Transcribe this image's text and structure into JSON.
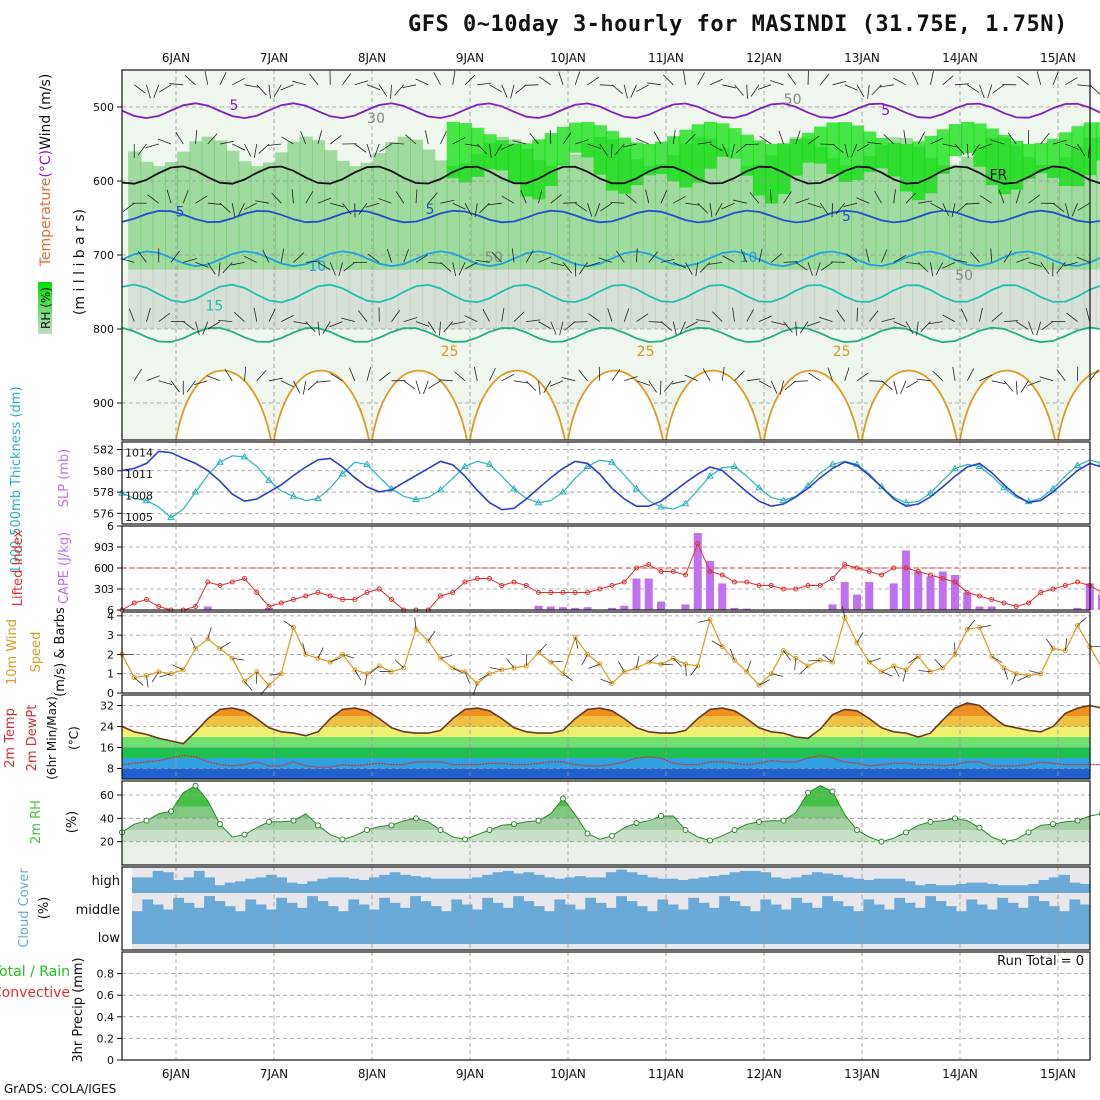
{
  "title": "GFS 0~10day 3-hourly for MASINDI (31.75E, 1.75N)",
  "footer": "GrADS: COLA/IGES",
  "colors": {
    "rh_green": "#00e000",
    "rh_mid": "#5fc45f",
    "rh_light": "#e8f4e8",
    "rh_grey": "#a8b8a8",
    "slp": "#2a3fd0",
    "thickness": "#28b4c0",
    "cape": "#c070f0",
    "lifted": "#e03030",
    "wind": "#e09a20",
    "temp_fill": "#e07018",
    "dewpt": "#d03030",
    "rh2m": "#48c048",
    "cloud": "#6aaad8",
    "cloud_gap": "#e8e8ec"
  },
  "chart_data": [
    {
      "type": "contour",
      "panel": "upper_air",
      "ylabel_parts": [
        "Temperature",
        "(°C)",
        "Wind",
        "(m/s)"
      ],
      "ylabel2": "(m i l l i b a r s)",
      "rh_label": "RH (%)",
      "x_dates": [
        "6JAN",
        "7JAN",
        "8JAN",
        "9JAN",
        "10JAN",
        "11JAN",
        "12JAN",
        "13JAN",
        "14JAN",
        "15JAN"
      ],
      "ylim": [
        450,
        950
      ],
      "y_ticks": [
        500,
        600,
        700,
        800,
        900
      ],
      "contour_labels": [
        {
          "text": "5",
          "x": 1.0,
          "y": 497,
          "color": "#8020c0"
        },
        {
          "text": "5",
          "x": 7.65,
          "y": 504,
          "color": "#8020c0"
        },
        {
          "text": "50",
          "x": 6.7,
          "y": 489,
          "color": "#888888"
        },
        {
          "text": "30",
          "x": 2.45,
          "y": 515,
          "color": "#888888"
        },
        {
          "text": "FR",
          "x": 8.8,
          "y": 591,
          "color": "#111111"
        },
        {
          "text": "5",
          "x": 0.45,
          "y": 641,
          "color": "#2050d0"
        },
        {
          "text": "5",
          "x": 3.0,
          "y": 638,
          "color": "#2050d0"
        },
        {
          "text": "5",
          "x": 7.25,
          "y": 647,
          "color": "#2050d0"
        },
        {
          "text": "10",
          "x": 1.85,
          "y": 715,
          "color": "#20a0e0"
        },
        {
          "text": "10",
          "x": 6.25,
          "y": 703,
          "color": "#20a0e0"
        },
        {
          "text": "50",
          "x": 3.65,
          "y": 703,
          "color": "#888888"
        },
        {
          "text": "50",
          "x": 8.45,
          "y": 727,
          "color": "#888888"
        },
        {
          "text": "15",
          "x": 0.8,
          "y": 768,
          "color": "#20c0b0"
        },
        {
          "text": "25",
          "x": 3.2,
          "y": 830,
          "color": "#e09a20"
        },
        {
          "text": "25",
          "x": 5.2,
          "y": 830,
          "color": "#e09a20"
        },
        {
          "text": "25",
          "x": 7.2,
          "y": 830,
          "color": "#e09a20"
        }
      ]
    },
    {
      "type": "line",
      "panel": "slp_thickness",
      "ylabel_thickness": "1000-500mb Thickness (dm)",
      "ylabel_slp": "SLP (mb)",
      "left_ticks": [
        576,
        578,
        580,
        582
      ],
      "right_ticks": [
        1005,
        1008,
        1011,
        1014
      ],
      "slp": [
        1011.5,
        1011.8,
        1012.5,
        1014.2,
        1014.0,
        1013.2,
        1012.5,
        1011.5,
        1010.0,
        1008.2,
        1007.2,
        1007.5,
        1008.5,
        1009.5,
        1010.8,
        1012.0,
        1013.0,
        1013.2,
        1012.0,
        1010.5,
        1009.2,
        1008.5,
        1008.8,
        1009.8,
        1010.8,
        1011.8,
        1012.8,
        1012.3,
        1010.7,
        1008.7,
        1007.0,
        1006.0,
        1006.2,
        1007.5,
        1009.0,
        1010.5,
        1011.8,
        1012.8,
        1012.5,
        1011.0,
        1009.0,
        1007.5,
        1006.5,
        1006.5,
        1007.2,
        1008.5,
        1009.8,
        1011.0,
        1012.0,
        1011.5,
        1010.0,
        1008.5,
        1007.2,
        1006.5,
        1006.8,
        1007.8,
        1009.0,
        1010.5,
        1011.8,
        1012.7,
        1012.2,
        1010.8,
        1009.2,
        1007.5,
        1006.5,
        1006.8,
        1007.8,
        1009.2,
        1010.7,
        1012.0,
        1012.5,
        1011.2,
        1009.5,
        1008.0,
        1007.0,
        1007.3,
        1008.5,
        1010.0,
        1011.5,
        1012.5,
        1012.0,
        1010.5,
        1009.0,
        1007.8,
        1007.5,
        1008.2,
        1009.5,
        1010.8,
        1012.0,
        1012.7
      ],
      "thickness": [
        577.9,
        577.4,
        577.2,
        576.6,
        575.6,
        576.4,
        578.0,
        579.6,
        580.8,
        581.4,
        581.3,
        580.4,
        579.1,
        578.1,
        577.6,
        577.2,
        577.4,
        578.4,
        579.7,
        580.8,
        580.6,
        579.4,
        578.3,
        577.6,
        577.3,
        577.5,
        578.2,
        579.3,
        580.4,
        580.9,
        580.6,
        579.5,
        578.3,
        577.4,
        577.0,
        577.2,
        578.0,
        579.3,
        580.4,
        581.0,
        580.8,
        579.6,
        578.3,
        577.2,
        576.6,
        576.4,
        576.9,
        578.2,
        579.5,
        580.3,
        580.4,
        579.5,
        578.4,
        577.5,
        577.2,
        577.6,
        578.6,
        579.8,
        580.6,
        580.9,
        580.6,
        579.7,
        578.5,
        577.5,
        577.0,
        577.1,
        577.9,
        579.1,
        580.2,
        580.6,
        580.4,
        579.5,
        578.4,
        577.5,
        577.1,
        577.4,
        578.3,
        579.5,
        580.5,
        581.0,
        580.7,
        579.7,
        578.6,
        577.7,
        577.2,
        577.3,
        578.0,
        579.1,
        580.1,
        580.6
      ]
    },
    {
      "type": "bar",
      "panel": "cape_li",
      "ylabel_li": "Lifted Index",
      "ylabel_cape": "CAPE (J/kg)",
      "left_ticks": [
        6,
        3,
        0,
        -3,
        -6
      ],
      "right_ticks": [
        30,
        60,
        90
      ],
      "ylim_cape": [
        0,
        120
      ],
      "cape": [
        0,
        0,
        0,
        0,
        0,
        0,
        0,
        5,
        0,
        0,
        0,
        0,
        3,
        0,
        0,
        0,
        0,
        0,
        0,
        0,
        0,
        0,
        0,
        0,
        0,
        0,
        0,
        0,
        0,
        0,
        0,
        0,
        0,
        0,
        6,
        5,
        4,
        3,
        4,
        0,
        3,
        6,
        45,
        45,
        12,
        0,
        8,
        110,
        70,
        38,
        3,
        2,
        0,
        0,
        0,
        0,
        0,
        0,
        8,
        40,
        22,
        40,
        0,
        38,
        85,
        55,
        48,
        55,
        50,
        25,
        5,
        5,
        0,
        0,
        0,
        0,
        0,
        0,
        3,
        38,
        22,
        10,
        0,
        0,
        0,
        0,
        0,
        0,
        30,
        3
      ],
      "lifted_index": [
        6,
        5,
        4.5,
        5.5,
        6,
        6,
        5.5,
        2,
        2.5,
        2,
        1.5,
        3.5,
        5.5,
        5,
        4.5,
        4,
        3.5,
        4,
        4.5,
        4.5,
        3.5,
        3,
        4.5,
        6,
        6,
        6,
        4,
        3.5,
        2,
        1.5,
        1.5,
        2.5,
        2,
        2.5,
        3.5,
        3.5,
        3.5,
        3.5,
        3.5,
        3,
        2.5,
        2,
        0,
        -0.5,
        0.5,
        0.5,
        1,
        -3.5,
        0.5,
        1,
        2,
        2,
        2.5,
        2.5,
        3,
        3,
        2.5,
        2.5,
        1.5,
        -0.5,
        0,
        0.5,
        1,
        0,
        0,
        0.5,
        1,
        1.5,
        2,
        3.5,
        4,
        4.5,
        5,
        5.5,
        5,
        3.5,
        3,
        2.5,
        2,
        2.5,
        3.5,
        3.5,
        3.5,
        3,
        2.5,
        2.5,
        2.5,
        2.5,
        2.5,
        1.5
      ]
    },
    {
      "type": "line",
      "panel": "wind10m",
      "ylabel_parts": [
        "10m Wind",
        "Speed",
        "(m/s) & Barbs"
      ],
      "ylim": [
        0,
        4
      ],
      "y_ticks": [
        0,
        1,
        2,
        3,
        4
      ],
      "speed": [
        2.0,
        0.8,
        0.9,
        1.1,
        1.0,
        1.2,
        2.3,
        2.8,
        2.3,
        1.8,
        0.6,
        1.1,
        0.4,
        1.0,
        3.4,
        2.0,
        1.8,
        1.6,
        2.0,
        1.2,
        1.0,
        1.4,
        1.1,
        1.3,
        3.3,
        2.7,
        1.8,
        1.3,
        1.1,
        0.5,
        1.0,
        1.2,
        1.3,
        1.4,
        2.1,
        1.6,
        1.0,
        2.9,
        2.0,
        1.5,
        0.5,
        1.1,
        1.3,
        1.6,
        1.5,
        1.8,
        1.5,
        1.4,
        3.8,
        2.4,
        1.7,
        1.1,
        0.4,
        1.0,
        2.2,
        1.8,
        1.4,
        1.7,
        1.6,
        3.9,
        2.6,
        1.6,
        1.1,
        1.4,
        1.2,
        1.9,
        1.1,
        1.3,
        2.0,
        3.3,
        3.4,
        1.9,
        1.3,
        1.0,
        0.9,
        1.0,
        2.3,
        2.2,
        3.5,
        2.4,
        1.3,
        1.2,
        0.8,
        2.0,
        1.1,
        0.5,
        1.0,
        3.6,
        3.7,
        1.5,
        1.0,
        0.9,
        1.4,
        1.0,
        2.0
      ]
    },
    {
      "type": "area",
      "panel": "temp2m",
      "ylabel_parts": [
        "2m Temp",
        "2m DewPt",
        "(6hr Min/Max)",
        "(°C)"
      ],
      "ylim": [
        4,
        36
      ],
      "y_ticks": [
        8,
        16,
        24,
        32
      ],
      "temp": [
        24,
        22,
        21,
        19.5,
        18.5,
        17.5,
        22,
        27,
        30.5,
        31,
        30,
        27,
        23.5,
        22,
        21.5,
        20.5,
        22,
        27,
        30.5,
        31,
        30,
        27,
        23.5,
        22,
        21.5,
        21.5,
        22.5,
        27,
        30.5,
        31,
        30,
        27,
        23.5,
        22,
        21.5,
        21.5,
        22.5,
        27,
        30.5,
        31,
        30,
        27,
        23.5,
        22,
        21.5,
        21.5,
        22.5,
        27,
        30.5,
        31,
        30,
        27,
        23.5,
        22,
        21.5,
        20,
        19.5,
        23,
        28.5,
        30.5,
        30,
        27,
        23.5,
        22,
        21.5,
        20,
        21.5,
        26.5,
        31,
        33,
        32,
        28,
        24.5,
        23.5,
        22.5,
        22,
        24,
        29,
        31,
        32,
        31,
        28,
        25,
        24,
        23.5,
        23
      ],
      "dewpt": [
        9.5,
        10,
        10.5,
        11,
        12,
        13,
        12.5,
        10.5,
        9.5,
        9,
        9.5,
        10.5,
        9,
        9,
        10.5,
        9,
        8.5,
        8.5,
        9.5,
        9,
        9.5,
        10,
        9.5,
        9.5,
        10.5,
        10.5,
        10.5,
        9.5,
        9.5,
        9.5,
        10,
        10,
        9.5,
        9.5,
        10,
        10.5,
        10.5,
        9.5,
        9,
        9,
        9.5,
        10.5,
        12,
        12.5,
        12,
        10,
        9.5,
        9.5,
        10.5,
        10.5,
        10,
        9.5,
        10,
        11,
        10.5,
        10.5,
        12,
        13,
        12,
        10.5,
        10,
        9,
        9.5,
        10,
        10,
        9.5,
        9.5,
        9,
        9.5,
        10.5,
        10.5,
        9,
        9,
        9,
        9.5,
        10.5,
        10,
        9.5,
        9.5,
        9.5,
        9.5,
        9.5,
        9.5,
        10.5
      ]
    },
    {
      "type": "area",
      "panel": "rh2m",
      "ylabel": "2m RH",
      "yunit": "(%)",
      "ylim": [
        0,
        72
      ],
      "y_ticks": [
        20,
        40,
        60
      ],
      "rh": [
        28,
        35,
        38,
        44,
        46,
        62,
        68,
        55,
        35,
        24,
        26,
        32,
        37,
        37,
        38,
        44,
        34,
        26,
        22,
        25,
        30,
        33,
        34,
        38,
        40,
        37,
        30,
        24,
        22,
        26,
        30,
        34,
        35,
        37,
        38,
        44,
        57,
        43,
        27,
        22,
        25,
        32,
        36,
        38,
        42,
        42,
        30,
        24,
        21,
        25,
        30,
        35,
        37,
        38,
        38,
        45,
        62,
        68,
        63,
        43,
        30,
        24,
        20,
        23,
        28,
        34,
        37,
        38,
        40,
        38,
        32,
        24,
        20,
        22,
        28,
        34,
        35,
        37,
        38,
        42,
        44,
        38,
        28,
        22,
        24,
        28,
        30,
        32,
        36,
        42
      ]
    },
    {
      "type": "area",
      "panel": "cloud",
      "ylabel": "Cloud Cover",
      "yunit": "(%)",
      "levels": [
        "high",
        "middle",
        "low"
      ],
      "high": [
        60,
        60,
        85,
        80,
        50,
        60,
        85,
        60,
        30,
        40,
        45,
        55,
        60,
        70,
        60,
        40,
        35,
        45,
        55,
        60,
        60,
        55,
        50,
        60,
        70,
        80,
        70,
        65,
        60,
        55,
        55,
        55,
        55,
        60,
        70,
        80,
        85,
        75,
        80,
        70,
        60,
        55,
        60,
        65,
        60,
        60,
        80,
        90,
        80,
        70,
        60,
        55,
        55,
        50,
        55,
        60,
        65,
        70,
        80,
        85,
        85,
        80,
        60,
        55,
        60,
        70,
        80,
        75,
        70,
        60,
        55,
        50,
        55,
        55,
        55,
        45,
        30,
        35,
        30,
        30,
        35,
        40,
        40,
        35,
        30,
        30,
        30,
        35,
        50,
        60,
        70,
        40,
        35
      ],
      "middle": [
        100,
        100,
        100,
        100,
        100,
        100,
        100,
        100,
        100,
        100,
        100,
        100,
        100,
        100,
        100,
        100,
        100,
        100,
        100,
        100,
        100,
        100,
        100,
        100,
        100,
        100,
        100,
        100,
        100,
        100,
        100,
        100,
        100,
        100,
        100,
        100,
        100,
        100,
        100,
        100,
        100,
        100,
        100,
        100,
        100,
        100,
        100,
        100,
        100,
        100,
        100,
        100,
        100,
        100,
        100,
        100,
        100,
        100,
        100,
        100,
        100,
        100,
        100,
        100,
        100,
        100,
        100,
        100,
        100,
        100,
        100,
        100,
        100,
        100,
        100,
        100,
        100,
        100,
        100,
        100,
        100,
        100,
        100,
        100,
        100,
        100,
        100,
        100,
        100,
        100,
        100,
        100,
        100
      ]
    },
    {
      "type": "bar",
      "panel": "precip",
      "ylabel": "3hr Precip (mm)",
      "legend_total_rain": "Total / Rain",
      "legend_convective": "Convective",
      "run_total": "Run Total = 0",
      "ylim": [
        0,
        1
      ],
      "y_ticks": [
        "0",
        "0.2",
        "0.4",
        "0.6",
        "0.8"
      ],
      "values": []
    }
  ]
}
